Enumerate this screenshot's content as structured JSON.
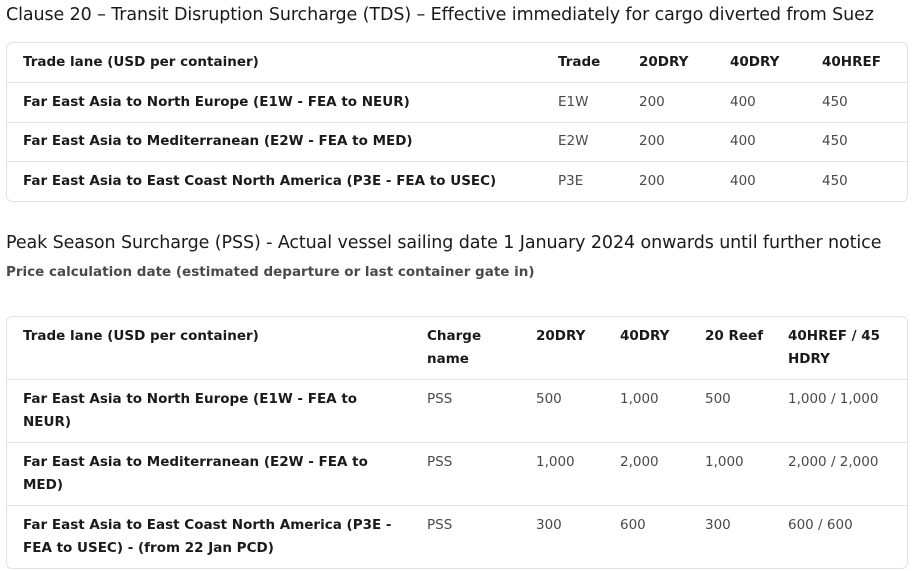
{
  "tds": {
    "heading": "Clause 20 – Transit Disruption Surcharge (TDS) – Effective immediately for cargo diverted from Suez",
    "columns": [
      "Trade lane (USD per container)",
      "Trade",
      "20DRY",
      "40DRY",
      "40HREF"
    ],
    "rows": [
      {
        "lane": "Far East Asia to North Europe (E1W - FEA to NEUR)",
        "trade": "E1W",
        "dry20": "200",
        "dry40": "400",
        "href40": "450"
      },
      {
        "lane": "Far East Asia to Mediterranean (E2W - FEA to MED)",
        "trade": "E2W",
        "dry20": "200",
        "dry40": "400",
        "href40": "450"
      },
      {
        "lane": "Far East Asia to East Coast North America (P3E - FEA to USEC)",
        "trade": "P3E",
        "dry20": "200",
        "dry40": "400",
        "href40": "450"
      }
    ]
  },
  "pss": {
    "heading": "Peak Season Surcharge (PSS) - Actual vessel sailing date 1 January 2024 onwards until further notice",
    "subheading": "Price calculation date (estimated departure or last container gate in)",
    "columns": [
      "Trade lane (USD per container)",
      "Charge name",
      "20DRY",
      "40DRY",
      "20 Reef",
      "40HREF / 45 HDRY"
    ],
    "rows": [
      {
        "lane": "Far East Asia to North Europe (E1W - FEA to NEUR)",
        "charge": "PSS",
        "dry20": "500",
        "dry40": "1,000",
        "reef20": "500",
        "href40": "1,000 / 1,000"
      },
      {
        "lane": "Far East Asia to Mediterranean (E2W - FEA to MED)",
        "charge": "PSS",
        "dry20": "1,000",
        "dry40": "2,000",
        "reef20": "1,000",
        "href40": "2,000 / 2,000"
      },
      {
        "lane": "Far East Asia to East Coast North America (P3E - FEA to USEC) - (from 22 Jan PCD)",
        "charge": "PSS",
        "dry20": "300",
        "dry40": "600",
        "reef20": "300",
        "href40": "600 / 600"
      }
    ]
  }
}
